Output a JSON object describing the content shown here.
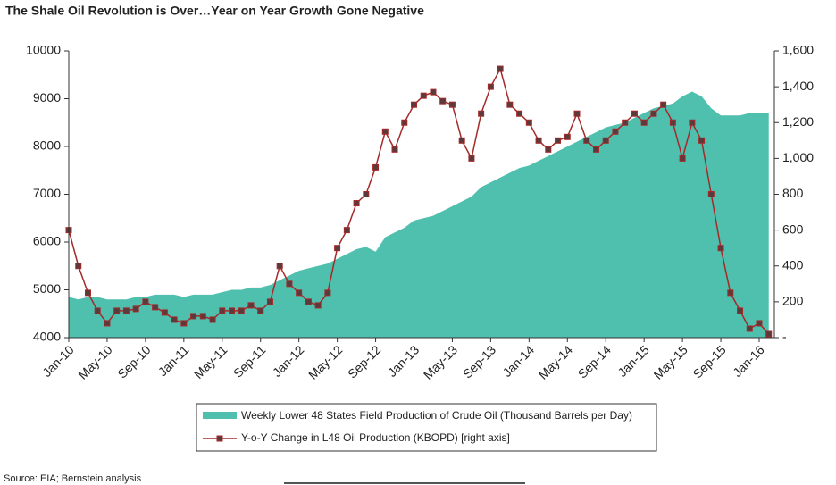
{
  "chart_data": {
    "type": "area-line",
    "title": "The Shale Oil Revolution is Over…Year on Year Growth Gone Negative",
    "source": "Source: EIA; Bernstein analysis",
    "categories": [
      "Jan-10",
      null,
      null,
      null,
      "May-10",
      null,
      null,
      null,
      "Sep-10",
      null,
      null,
      null,
      "Jan-11",
      null,
      null,
      null,
      "May-11",
      null,
      null,
      null,
      "Sep-11",
      null,
      null,
      null,
      "Jan-12",
      null,
      null,
      null,
      "May-12",
      null,
      null,
      null,
      "Sep-12",
      null,
      null,
      null,
      "Jan-13",
      null,
      null,
      null,
      "May-13",
      null,
      null,
      null,
      "Sep-13",
      null,
      null,
      null,
      "Jan-14",
      null,
      null,
      null,
      "May-14",
      null,
      null,
      null,
      "Sep-14",
      null,
      null,
      null,
      "Jan-15",
      null,
      null,
      null,
      "May-15",
      null,
      null,
      null,
      "Sep-15",
      null,
      null,
      null,
      "Jan-16",
      null
    ],
    "series": [
      {
        "name": "Weekly Lower 48 States Field Production of Crude Oil  (Thousand Barrels per Day)",
        "color": "#4fbfae",
        "kind": "area",
        "values": [
          4850,
          4800,
          4850,
          4850,
          4800,
          4800,
          4800,
          4850,
          4850,
          4900,
          4900,
          4900,
          4850,
          4900,
          4900,
          4900,
          4950,
          5000,
          5000,
          5050,
          5050,
          5100,
          5200,
          5300,
          5400,
          5450,
          5500,
          5550,
          5650,
          5750,
          5850,
          5900,
          5800,
          6100,
          6200,
          6300,
          6450,
          6500,
          6550,
          6650,
          6750,
          6850,
          6950,
          7150,
          7250,
          7350,
          7450,
          7550,
          7600,
          7700,
          7800,
          7900,
          8000,
          8100,
          8200,
          8300,
          8400,
          8450,
          8500,
          8600,
          8700,
          8800,
          8850,
          8900,
          9050,
          9150,
          9050,
          8800,
          8650,
          8650,
          8650,
          8700,
          8700,
          8700
        ]
      },
      {
        "name": "Y-o-Y Change in L48 Oil Production (KBOPD) [right axis]",
        "color": "#a52a2a",
        "kind": "line",
        "axis": "y2",
        "values": [
          600,
          400,
          250,
          150,
          80,
          150,
          150,
          160,
          200,
          170,
          140,
          100,
          80,
          120,
          120,
          100,
          150,
          150,
          150,
          180,
          150,
          200,
          400,
          300,
          250,
          200,
          180,
          250,
          500,
          600,
          750,
          800,
          950,
          1150,
          1050,
          1200,
          1300,
          1350,
          1370,
          1320,
          1300,
          1100,
          1000,
          1250,
          1400,
          1500,
          1300,
          1250,
          1200,
          1100,
          1050,
          1100,
          1120,
          1250,
          1100,
          1050,
          1100,
          1150,
          1200,
          1250,
          1200,
          1250,
          1300,
          1200,
          1000,
          1200,
          1100,
          800,
          500,
          250,
          150,
          50,
          80,
          20
        ]
      }
    ],
    "ylim": [
      4000,
      10000
    ],
    "yticks": [
      4000,
      5000,
      6000,
      7000,
      8000,
      9000,
      10000
    ],
    "y2lim": [
      0,
      1600
    ],
    "y2ticks": [
      {
        "value": 0,
        "label": "-"
      },
      200,
      400,
      600,
      800,
      {
        "value": 1000,
        "label": "1,000"
      },
      {
        "value": 1200,
        "label": "1,200"
      },
      {
        "value": 1400,
        "label": "1,400"
      },
      {
        "value": 1600,
        "label": "1,600"
      }
    ]
  }
}
